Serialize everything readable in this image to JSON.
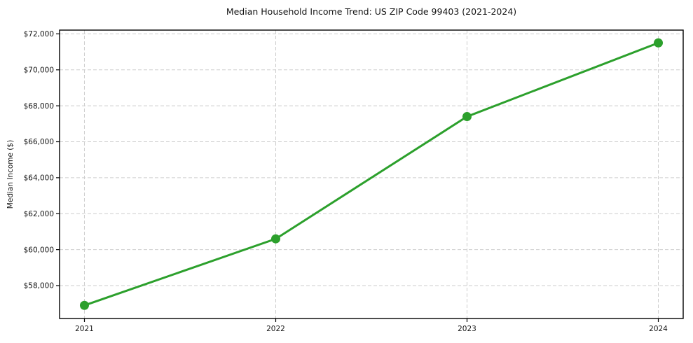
{
  "figure": {
    "background": "#ffffff"
  },
  "chart_data": {
    "type": "line",
    "title": "Median Household Income Trend: US ZIP Code 99403 (2021-2024)",
    "xlabel": "",
    "ylabel": "Median Income ($)",
    "x": [
      2021,
      2022,
      2023,
      2024
    ],
    "values": [
      56900,
      60600,
      67400,
      71500
    ],
    "xlim": [
      2020.87,
      2024.13
    ],
    "ylim": [
      56170,
      72210
    ],
    "xticks": [
      2021,
      2022,
      2023,
      2024
    ],
    "xtick_labels": [
      "2021",
      "2022",
      "2023",
      "2024"
    ],
    "yticks": [
      58000,
      60000,
      62000,
      64000,
      66000,
      68000,
      70000,
      72000
    ],
    "ytick_labels": [
      "$58,000",
      "$60,000",
      "$62,000",
      "$64,000",
      "$66,000",
      "$68,000",
      "$70,000",
      "$72,000"
    ],
    "grid": true,
    "grid_style": "dashed",
    "grid_color": "#cdcdcd",
    "legend": false,
    "line_color": "#2ca02c",
    "marker": "circle",
    "marker_size": 6.5,
    "line_width": 3,
    "spine_color": "#000000",
    "text_color": "#141414"
  }
}
